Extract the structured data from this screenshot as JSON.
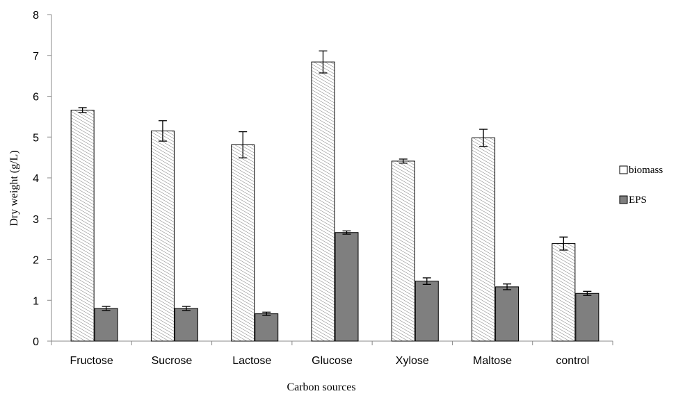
{
  "chart_data": {
    "type": "bar",
    "title": "",
    "xlabel": "Carbon sources",
    "ylabel": "Dry weight (g/L)",
    "ylim": [
      0,
      8
    ],
    "yticks": [
      0,
      1,
      2,
      3,
      4,
      5,
      6,
      7,
      8
    ],
    "grid": false,
    "legend_position": "right",
    "categories": [
      "Fructose",
      "Sucrose",
      "Lactose",
      "Glucose",
      "Xylose",
      "Maltose",
      "control"
    ],
    "series": [
      {
        "name": "biomass",
        "values": [
          5.66,
          5.15,
          4.81,
          6.84,
          4.41,
          4.98,
          2.39
        ],
        "errors": [
          0.06,
          0.25,
          0.32,
          0.27,
          0.05,
          0.21,
          0.16
        ],
        "fill": "#ffffff",
        "pattern": "diagonal-hatch",
        "stroke": "#000000"
      },
      {
        "name": "EPS",
        "values": [
          0.8,
          0.8,
          0.67,
          2.66,
          1.47,
          1.33,
          1.17
        ],
        "errors": [
          0.05,
          0.05,
          0.04,
          0.04,
          0.08,
          0.07,
          0.05
        ],
        "fill": "#7f7f7f",
        "stroke": "#000000"
      }
    ]
  }
}
